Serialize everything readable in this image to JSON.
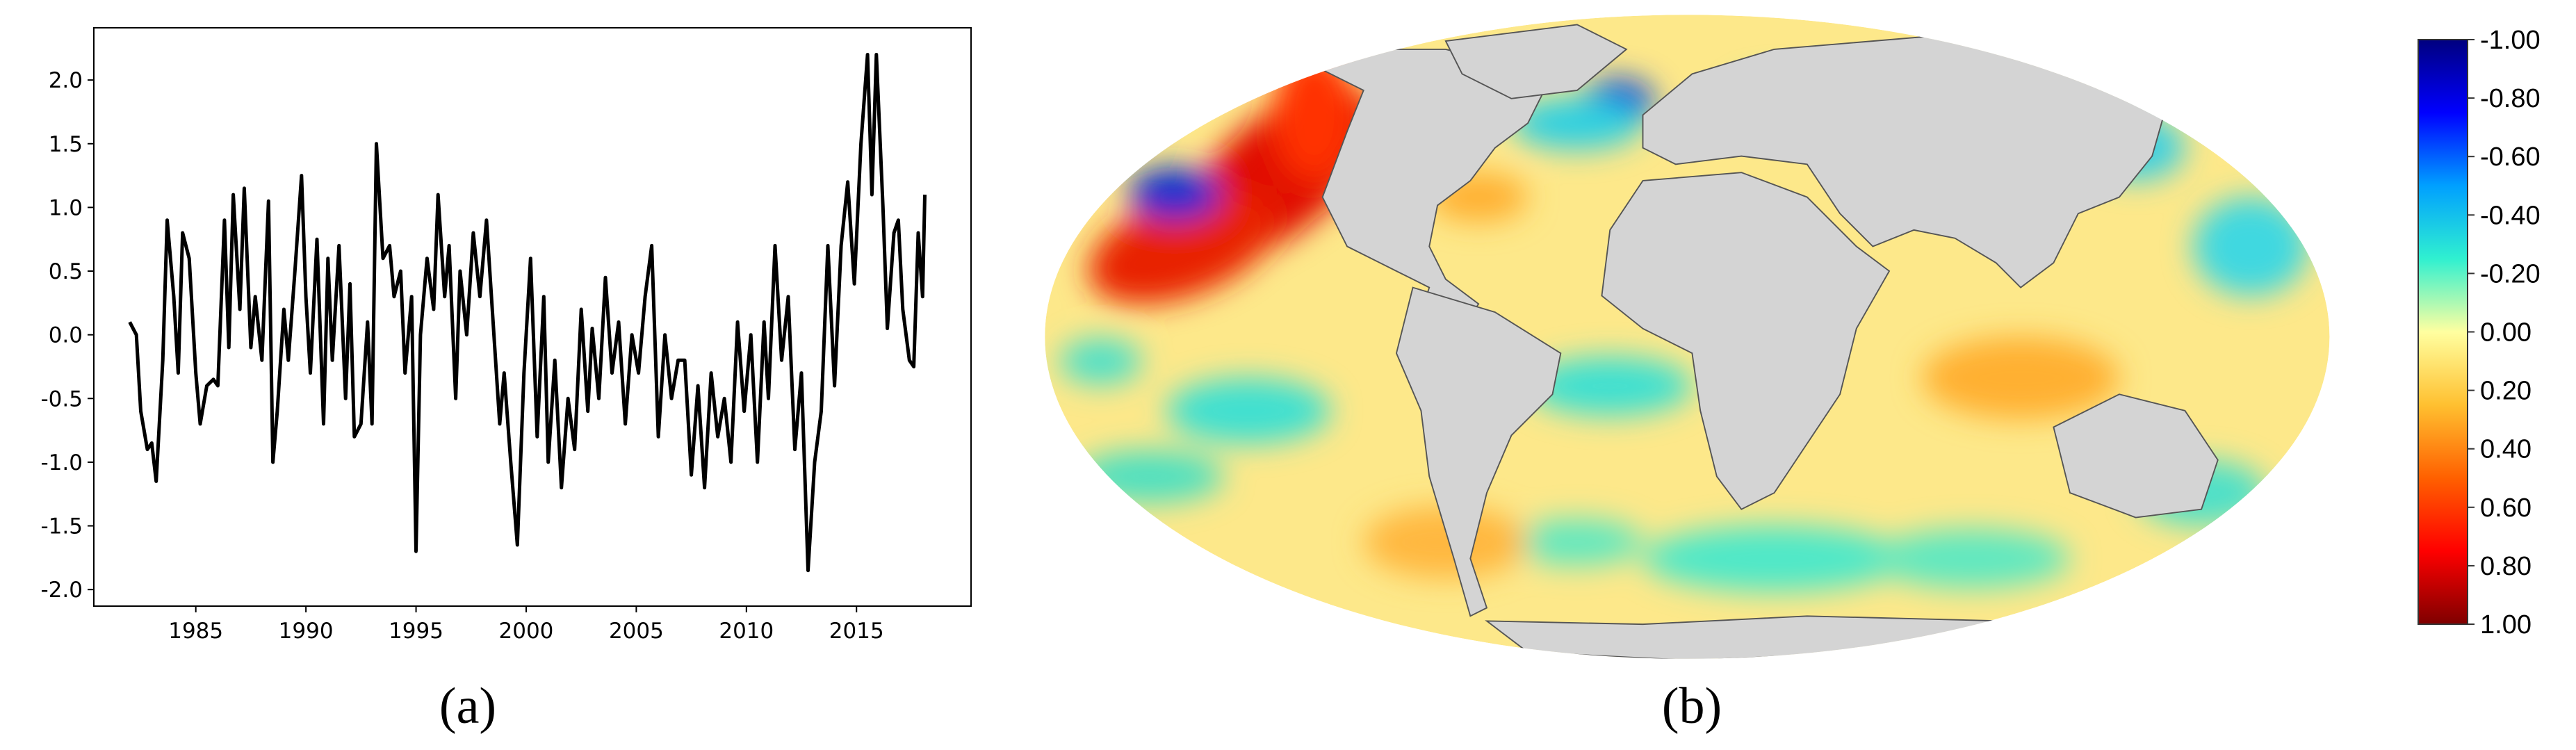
{
  "chart_data": [
    {
      "type": "line",
      "caption": "(a)",
      "color": "#000000",
      "x": [
        1982.0,
        1982.3,
        1982.5,
        1982.8,
        1983.0,
        1983.2,
        1983.5,
        1983.7,
        1984.0,
        1984.2,
        1984.4,
        1984.7,
        1985.0,
        1985.2,
        1985.5,
        1985.8,
        1986.0,
        1986.3,
        1986.5,
        1986.7,
        1987.0,
        1987.2,
        1987.5,
        1987.7,
        1988.0,
        1988.3,
        1988.5,
        1988.7,
        1989.0,
        1989.2,
        1989.5,
        1989.8,
        1990.0,
        1990.2,
        1990.5,
        1990.8,
        1991.0,
        1991.2,
        1991.5,
        1991.8,
        1992.0,
        1992.2,
        1992.5,
        1992.8,
        1993.0,
        1993.2,
        1993.5,
        1993.8,
        1994.0,
        1994.3,
        1994.5,
        1994.8,
        1995.0,
        1995.2,
        1995.5,
        1995.8,
        1996.0,
        1996.3,
        1996.5,
        1996.8,
        1997.0,
        1997.3,
        1997.6,
        1997.9,
        1998.2,
        1998.5,
        1998.8,
        1999.0,
        1999.3,
        1999.6,
        1999.9,
        2000.2,
        2000.5,
        2000.8,
        2001.0,
        2001.3,
        2001.6,
        2001.9,
        2002.2,
        2002.5,
        2002.8,
        2003.0,
        2003.3,
        2003.6,
        2003.9,
        2004.2,
        2004.5,
        2004.8,
        2005.1,
        2005.4,
        2005.7,
        2006.0,
        2006.3,
        2006.6,
        2006.9,
        2007.2,
        2007.5,
        2007.8,
        2008.1,
        2008.4,
        2008.7,
        2009.0,
        2009.3,
        2009.6,
        2009.9,
        2010.2,
        2010.5,
        2010.8,
        2011.0,
        2011.3,
        2011.6,
        2011.9,
        2012.2,
        2012.5,
        2012.8,
        2013.1,
        2013.4,
        2013.7,
        2014.0,
        2014.3,
        2014.6,
        2014.9,
        2015.2,
        2015.5,
        2015.7,
        2015.9,
        2016.2,
        2016.4,
        2016.7,
        2016.9,
        2017.1,
        2017.4,
        2017.6,
        2017.8,
        2018.0,
        2018.1
      ],
      "values": [
        0.1,
        0.0,
        -0.6,
        -0.9,
        -0.85,
        -1.15,
        -0.2,
        0.9,
        0.3,
        -0.3,
        0.8,
        0.6,
        -0.3,
        -0.7,
        -0.4,
        -0.35,
        -0.4,
        0.9,
        -0.1,
        1.1,
        0.2,
        1.15,
        -0.1,
        0.3,
        -0.2,
        1.05,
        -1.0,
        -0.6,
        0.2,
        -0.2,
        0.5,
        1.25,
        0.3,
        -0.3,
        0.75,
        -0.7,
        0.6,
        -0.2,
        0.7,
        -0.5,
        0.4,
        -0.8,
        -0.7,
        0.1,
        -0.7,
        1.5,
        0.6,
        0.7,
        0.3,
        0.5,
        -0.3,
        0.3,
        -1.7,
        0.0,
        0.6,
        0.2,
        1.1,
        0.3,
        0.7,
        -0.5,
        0.5,
        0.0,
        0.8,
        0.3,
        0.9,
        0.1,
        -0.7,
        -0.3,
        -1.0,
        -1.65,
        -0.3,
        0.6,
        -0.8,
        0.3,
        -1.0,
        -0.2,
        -1.2,
        -0.5,
        -0.9,
        0.2,
        -0.6,
        0.05,
        -0.5,
        0.45,
        -0.3,
        0.1,
        -0.7,
        0.0,
        -0.3,
        0.3,
        0.7,
        -0.8,
        0.0,
        -0.5,
        -0.2,
        -0.2,
        -1.1,
        -0.4,
        -1.2,
        -0.3,
        -0.8,
        -0.5,
        -1.0,
        0.1,
        -0.6,
        0.0,
        -1.0,
        0.1,
        -0.5,
        0.7,
        -0.2,
        0.3,
        -0.9,
        -0.3,
        -1.85,
        -1.0,
        -0.6,
        0.7,
        -0.4,
        0.7,
        1.2,
        0.4,
        1.5,
        2.2,
        1.1,
        2.2,
        1.0,
        0.05,
        0.8,
        0.9,
        0.2,
        -0.2,
        -0.25,
        0.8,
        0.3,
        1.1
      ],
      "xlim": [
        1980.37,
        2020.2
      ],
      "xticks": [
        1985,
        1990,
        1995,
        2000,
        2005,
        2010,
        2015
      ],
      "ylim": [
        -2.13,
        2.41
      ],
      "yticks": [
        {
          "value": -2,
          "label": "-2.0"
        },
        {
          "value": -1.5,
          "label": "-1.5"
        },
        {
          "value": -1,
          "label": "-1.0"
        },
        {
          "value": -0.5,
          "label": "-0.5"
        },
        {
          "value": 0,
          "label": "0.0"
        },
        {
          "value": 0.5,
          "label": "0.5"
        },
        {
          "value": 1,
          "label": "1.0"
        },
        {
          "value": 1.5,
          "label": "1.5"
        },
        {
          "value": 2,
          "label": "2.0"
        }
      ]
    },
    {
      "type": "map",
      "caption": "(b)",
      "clim": [
        -1,
        1
      ],
      "colorbar_colors": [
        "#00007f",
        "#0000ff",
        "#00a0ff",
        "#30f0d0",
        "#ffffa0",
        "#ffc030",
        "#ff6000",
        "#ff0000",
        "#7f0000"
      ],
      "colorbar_ticks": [
        {
          "value": -1,
          "label": "-1.00"
        },
        {
          "value": -0.8,
          "label": "-0.80"
        },
        {
          "value": -0.6,
          "label": "-0.60"
        },
        {
          "value": -0.4,
          "label": "-0.40"
        },
        {
          "value": -0.2,
          "label": "-0.20"
        },
        {
          "value": 0,
          "label": "0.00"
        },
        {
          "value": 0.2,
          "label": "0.20"
        },
        {
          "value": 0.4,
          "label": "0.40"
        },
        {
          "value": 0.6,
          "label": "0.60"
        },
        {
          "value": 0.8,
          "label": "0.80"
        },
        {
          "value": 1,
          "label": "1.00"
        }
      ]
    }
  ]
}
